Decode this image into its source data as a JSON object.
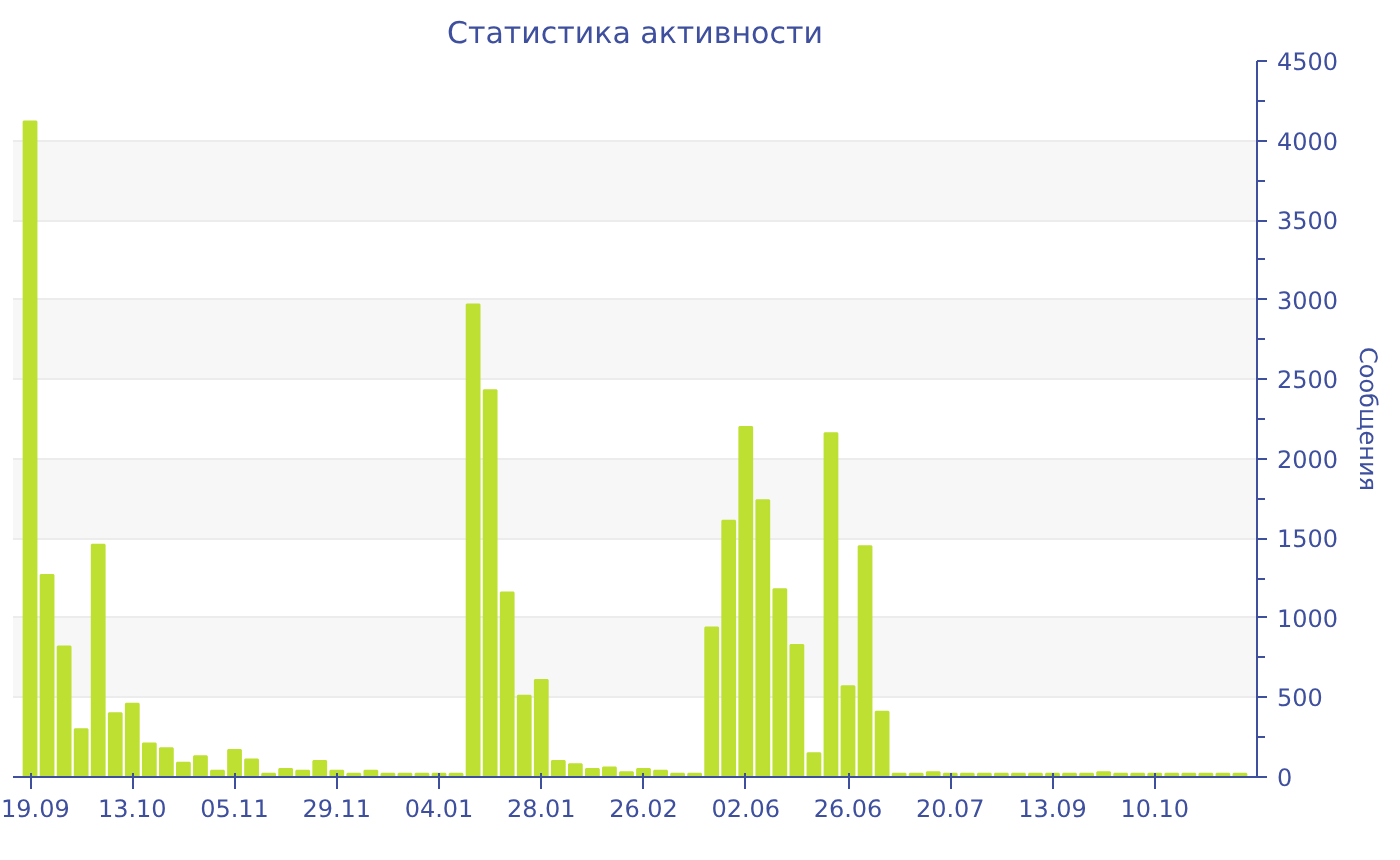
{
  "chart_data": {
    "type": "bar",
    "title": "Статистика активности",
    "ylabel": "Сообщения",
    "categories": [
      "19.09",
      null,
      null,
      null,
      null,
      null,
      "13.10",
      null,
      null,
      null,
      null,
      null,
      "05.11",
      null,
      null,
      null,
      null,
      null,
      "29.11",
      null,
      null,
      null,
      null,
      null,
      "04.01",
      null,
      null,
      null,
      null,
      null,
      "28.01",
      null,
      null,
      null,
      null,
      null,
      "26.02",
      null,
      null,
      null,
      null,
      null,
      "02.06",
      null,
      null,
      null,
      null,
      null,
      "26.06",
      null,
      null,
      null,
      null,
      null,
      "20.07",
      null,
      null,
      null,
      null,
      null,
      "13.09",
      null,
      null,
      null,
      null,
      null,
      "10.10",
      null,
      null,
      null,
      null,
      null
    ],
    "values": [
      4120,
      1270,
      820,
      300,
      1460,
      400,
      460,
      210,
      180,
      90,
      130,
      40,
      170,
      110,
      20,
      50,
      40,
      100,
      40,
      20,
      40,
      20,
      20,
      20,
      20,
      20,
      2970,
      2430,
      1160,
      510,
      610,
      100,
      80,
      50,
      60,
      30,
      50,
      40,
      20,
      20,
      940,
      1610,
      2200,
      1740,
      1180,
      830,
      150,
      2160,
      570,
      1450,
      410,
      20,
      20,
      30,
      20,
      20,
      20,
      20,
      20,
      20,
      20,
      20,
      20,
      30,
      20,
      20,
      20,
      20,
      20,
      20,
      20,
      20
    ],
    "color": "#bde032",
    "ylim": [
      0,
      4500
    ],
    "yticks": [
      0,
      500,
      1000,
      1500,
      2000,
      2500,
      3000,
      3500,
      4000,
      4500
    ],
    "grid": "y"
  }
}
